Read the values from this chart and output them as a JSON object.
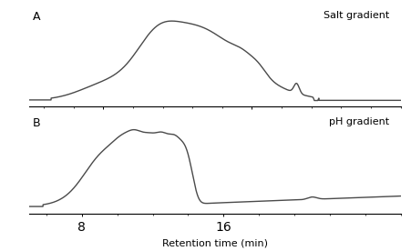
{
  "panel_A_label": "A",
  "panel_B_label": "B",
  "label_A": "Salt gradient",
  "label_B": "pH gradient",
  "xlabel": "Retention time (min)",
  "line_color": "#4a4a4a",
  "line_width": 1.0,
  "bg_color": "#ffffff",
  "panel_A": {
    "xlim": [
      5.0,
      30.0
    ],
    "xticks": [
      10,
      20
    ],
    "ylim": [
      -0.05,
      1.05
    ]
  },
  "panel_B": {
    "xlim": [
      5.0,
      26.0
    ],
    "xticks": [
      8,
      16
    ],
    "ylim": [
      -0.05,
      1.05
    ]
  }
}
